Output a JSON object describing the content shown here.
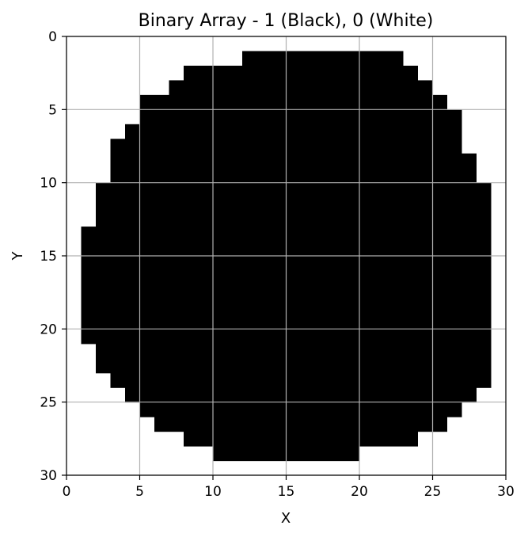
{
  "chart_data": {
    "type": "heatmap",
    "title": "Binary Array - 1 (Black), 0 (White)",
    "xlabel": "X",
    "ylabel": "Y",
    "xlim": [
      0,
      30
    ],
    "ylim": [
      30,
      0
    ],
    "xticks": [
      0,
      5,
      10,
      15,
      20,
      25,
      30
    ],
    "yticks": [
      0,
      5,
      10,
      15,
      20,
      25,
      30
    ],
    "grid": true,
    "colors": {
      "one": "#000000",
      "zero": "#ffffff",
      "grid": "#b0b0b0"
    },
    "rows": [
      {
        "y": 1,
        "x_start": 12,
        "x_end": 23
      },
      {
        "y": 2,
        "x_start": 8,
        "x_end": 24
      },
      {
        "y": 3,
        "x_start": 7,
        "x_end": 25
      },
      {
        "y": 4,
        "x_start": 5,
        "x_end": 26
      },
      {
        "y": 5,
        "x_start": 5,
        "x_end": 27
      },
      {
        "y": 6,
        "x_start": 4,
        "x_end": 27
      },
      {
        "y": 7,
        "x_start": 3,
        "x_end": 27
      },
      {
        "y": 8,
        "x_start": 3,
        "x_end": 28
      },
      {
        "y": 9,
        "x_start": 3,
        "x_end": 28
      },
      {
        "y": 10,
        "x_start": 2,
        "x_end": 29
      },
      {
        "y": 11,
        "x_start": 2,
        "x_end": 29
      },
      {
        "y": 12,
        "x_start": 2,
        "x_end": 29
      },
      {
        "y": 13,
        "x_start": 1,
        "x_end": 29
      },
      {
        "y": 14,
        "x_start": 1,
        "x_end": 29
      },
      {
        "y": 15,
        "x_start": 1,
        "x_end": 29
      },
      {
        "y": 16,
        "x_start": 1,
        "x_end": 29
      },
      {
        "y": 17,
        "x_start": 1,
        "x_end": 29
      },
      {
        "y": 18,
        "x_start": 1,
        "x_end": 29
      },
      {
        "y": 19,
        "x_start": 1,
        "x_end": 29
      },
      {
        "y": 20,
        "x_start": 1,
        "x_end": 29
      },
      {
        "y": 21,
        "x_start": 2,
        "x_end": 29
      },
      {
        "y": 22,
        "x_start": 2,
        "x_end": 29
      },
      {
        "y": 23,
        "x_start": 3,
        "x_end": 29
      },
      {
        "y": 24,
        "x_start": 4,
        "x_end": 28
      },
      {
        "y": 25,
        "x_start": 5,
        "x_end": 27
      },
      {
        "y": 26,
        "x_start": 6,
        "x_end": 26
      },
      {
        "y": 27,
        "x_start": 8,
        "x_end": 24
      },
      {
        "y": 28,
        "x_start": 10,
        "x_end": 20
      }
    ]
  }
}
